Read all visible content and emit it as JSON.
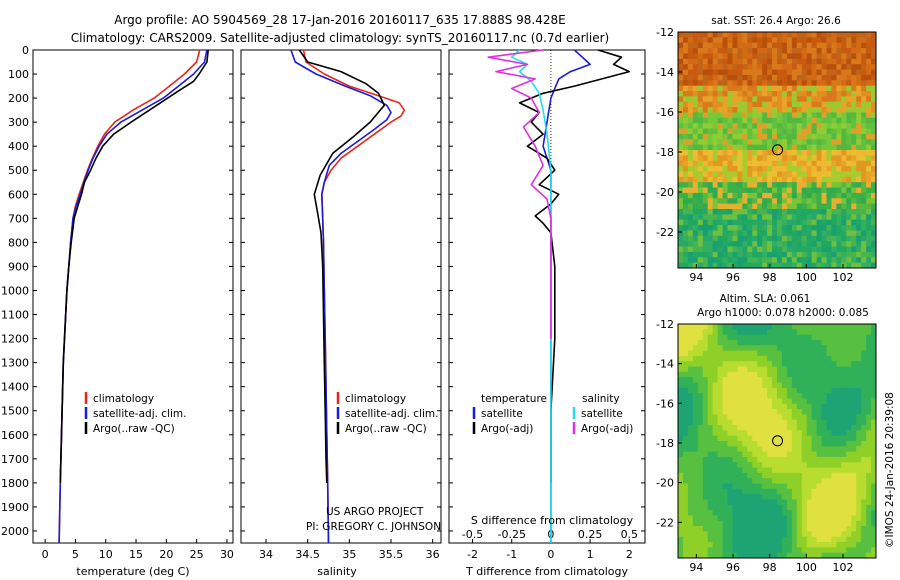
{
  "header": {
    "line1": "Argo profile: AO 5904569_28 17-Jan-2016 20160117_635 17.888S 98.428E",
    "line2": "Climatology: CARS2009. Satellite-adjusted climatology: synTS_20160117.nc (0.7d earlier)"
  },
  "credits": {
    "project": "US ARGO PROJECT",
    "pi": "PI: GREGORY C. JOHNSON",
    "stamp": "©IMOS 24-Jan-2016 20:39:08"
  },
  "colors": {
    "climatology": "#e8261e",
    "satellite": "#1c1cd8",
    "argo": "#000000",
    "sat_salinity": "#22e0e8",
    "argo_salinity": "#e030e0"
  },
  "chart_data": [
    {
      "id": "temperature",
      "type": "line",
      "xlabel": "temperature (deg C)",
      "xlim": [
        -2,
        31
      ],
      "xticks": [
        0,
        5,
        10,
        15,
        20,
        25,
        30
      ],
      "ylim": [
        2050,
        0
      ],
      "yticks": [
        0,
        100,
        200,
        300,
        400,
        500,
        600,
        700,
        800,
        900,
        1000,
        1100,
        1200,
        1300,
        1400,
        1500,
        1600,
        1700,
        1800,
        1900,
        2000
      ],
      "legend": [
        "climatology",
        "satellite-adj. clim.",
        "Argo(..raw -QC)"
      ],
      "series": [
        {
          "name": "climatology",
          "color_key": "climatology",
          "x": [
            25.5,
            25.0,
            23.0,
            20.5,
            18.0,
            14.5,
            11.5,
            9.8,
            8.7,
            7.8,
            7.0,
            6.3,
            5.6,
            5.0,
            4.6,
            4.2,
            3.9,
            3.6,
            3.4,
            3.2,
            3.0,
            2.9,
            2.7,
            2.5,
            2.3
          ],
          "y": [
            0,
            50,
            100,
            150,
            200,
            250,
            300,
            350,
            400,
            450,
            500,
            550,
            600,
            650,
            700,
            800,
            900,
            1000,
            1100,
            1200,
            1300,
            1400,
            1600,
            1800,
            2050
          ]
        },
        {
          "name": "satellite-adj. clim.",
          "color_key": "satellite",
          "x": [
            26.7,
            26.3,
            24.5,
            22.0,
            19.5,
            16.0,
            12.5,
            10.2,
            8.9,
            7.9,
            7.1,
            6.4,
            5.8,
            5.1,
            4.6,
            4.2,
            3.9,
            3.6,
            3.4,
            3.2,
            3.0,
            2.9,
            2.7,
            2.5,
            2.3
          ],
          "y": [
            0,
            50,
            100,
            150,
            200,
            250,
            300,
            350,
            400,
            450,
            500,
            550,
            600,
            650,
            700,
            800,
            900,
            1000,
            1100,
            1200,
            1300,
            1400,
            1600,
            1800,
            2050
          ]
        },
        {
          "name": "Argo(..raw -QC)",
          "color_key": "argo",
          "x": [
            26.9,
            26.7,
            25.4,
            24.5,
            22.0,
            19.0,
            14.2,
            11.3,
            9.5,
            8.4,
            7.5,
            6.5,
            6.0,
            5.4,
            4.8,
            4.3,
            3.9,
            3.6,
            3.4,
            3.2,
            3.0,
            2.9,
            2.7,
            2.5
          ],
          "y": [
            0,
            50,
            100,
            130,
            170,
            220,
            300,
            350,
            400,
            450,
            500,
            550,
            600,
            650,
            700,
            800,
            900,
            1000,
            1100,
            1200,
            1300,
            1400,
            1600,
            1800
          ]
        }
      ]
    },
    {
      "id": "salinity",
      "type": "line",
      "xlabel": "salinity",
      "xlim": [
        33.7,
        36.1
      ],
      "xticks": [
        34,
        34.5,
        35,
        35.5,
        36
      ],
      "ylim": [
        2050,
        0
      ],
      "legend": [
        "climatology",
        "satellite-adj. clim.",
        "Argo(..raw -QC)"
      ],
      "series": [
        {
          "name": "climatology",
          "color_key": "climatology",
          "x": [
            34.45,
            34.48,
            34.7,
            35.0,
            35.35,
            35.6,
            35.66,
            35.62,
            35.5,
            35.3,
            35.1,
            34.9,
            34.78,
            34.7,
            34.67,
            34.68,
            34.69,
            34.7,
            34.71,
            34.72,
            34.73,
            34.74,
            34.75
          ],
          "y": [
            0,
            50,
            100,
            150,
            190,
            220,
            250,
            275,
            300,
            350,
            400,
            450,
            500,
            550,
            600,
            700,
            800,
            1000,
            1200,
            1400,
            1600,
            1800,
            2050
          ]
        },
        {
          "name": "satellite-adj. clim.",
          "color_key": "satellite",
          "x": [
            34.3,
            34.35,
            34.6,
            34.95,
            35.25,
            35.45,
            35.5,
            35.45,
            35.3,
            35.1,
            34.9,
            34.76,
            34.7,
            34.67,
            34.68,
            34.69,
            34.7,
            34.71,
            34.72,
            34.73,
            34.74,
            34.75
          ],
          "y": [
            0,
            50,
            100,
            150,
            190,
            230,
            260,
            290,
            330,
            380,
            430,
            480,
            550,
            600,
            700,
            800,
            1000,
            1200,
            1400,
            1600,
            1800,
            2050
          ]
        },
        {
          "name": "Argo(..raw -QC)",
          "color_key": "argo",
          "x": [
            34.4,
            34.5,
            34.9,
            35.2,
            35.35,
            35.42,
            35.25,
            35.05,
            34.8,
            34.65,
            34.58,
            34.62,
            34.66,
            34.68,
            34.69,
            34.7,
            34.71,
            34.72,
            34.73
          ],
          "y": [
            0,
            50,
            90,
            140,
            180,
            230,
            300,
            360,
            430,
            520,
            600,
            680,
            760,
            900,
            1100,
            1300,
            1500,
            1700,
            1800
          ]
        }
      ]
    },
    {
      "id": "differences",
      "type": "line",
      "xlabel": "T difference from climatology",
      "xlabel_top": "S difference from climatology",
      "xlim": [
        -2.6,
        2.4
      ],
      "xticks": [
        -2,
        -1,
        0,
        1,
        2
      ],
      "xticks_top_labels": [
        "-0.5",
        "-0.25",
        "0",
        "0.25",
        "0.5"
      ],
      "xticks_top_pos": [
        -2,
        -1,
        0,
        1,
        2
      ],
      "ylim": [
        2050,
        0
      ],
      "legend_left_title": "temperature",
      "legend_right_title": "salinity",
      "legend": [
        "satellite",
        "Argo(-adj)",
        "satellite",
        "Argo(-adj)"
      ],
      "series": [
        {
          "name": "temperature satellite",
          "color_key": "satellite",
          "x": [
            0.6,
            0.8,
            1.0,
            0.5,
            0.2,
            0.1,
            0.0,
            -0.1,
            -0.2,
            0.0,
            0.0,
            0.0,
            0.0,
            0.0
          ],
          "y": [
            0,
            30,
            60,
            90,
            120,
            160,
            200,
            300,
            400,
            500,
            700,
            1000,
            1500,
            2050
          ]
        },
        {
          "name": "temperature Argo",
          "color_key": "argo",
          "x": [
            1.2,
            1.8,
            1.6,
            2.0,
            1.3,
            0.6,
            -0.2,
            -0.8,
            -0.3,
            -0.5,
            -0.2,
            -0.6,
            -0.1,
            0.1,
            -0.3,
            0.2,
            0.0,
            -0.4,
            -0.2,
            0.0,
            0.1,
            0.1,
            0.0,
            0.0
          ],
          "y": [
            0,
            30,
            60,
            90,
            120,
            150,
            180,
            220,
            260,
            300,
            350,
            400,
            450,
            500,
            560,
            600,
            640,
            690,
            720,
            760,
            900,
            1200,
            1500,
            1800
          ]
        },
        {
          "name": "salinity satellite",
          "color_key": "sat_salinity",
          "x": [
            -0.8,
            -1.0,
            -0.6,
            -0.8,
            -0.5,
            -0.3,
            -0.2,
            -0.1,
            0.0,
            0.0,
            0.0,
            0.0
          ],
          "y": [
            0,
            30,
            60,
            90,
            130,
            180,
            250,
            350,
            500,
            800,
            1300,
            2050
          ]
        },
        {
          "name": "salinity Argo",
          "color_key": "argo_salinity",
          "x": [
            -0.2,
            -1.6,
            -0.6,
            -1.4,
            -0.4,
            -1.0,
            -0.5,
            -0.3,
            -0.7,
            -0.4,
            -0.2,
            -0.5,
            -0.1,
            0.0,
            0.0,
            0.0
          ],
          "y": [
            0,
            30,
            60,
            90,
            120,
            160,
            200,
            260,
            320,
            400,
            480,
            560,
            620,
            700,
            900,
            1200
          ]
        }
      ]
    },
    {
      "id": "sst_map",
      "type": "heatmap",
      "title": "sat. SST: 26.4  Argo: 26.6",
      "xticks": [
        94,
        96,
        98,
        100,
        102
      ],
      "yticks": [
        -12,
        -14,
        -16,
        -18,
        -20,
        -22
      ],
      "xlim": [
        93,
        103.8
      ],
      "ylim": [
        -23.8,
        -12
      ],
      "marker": {
        "lon": 98.43,
        "lat": -17.89
      }
    },
    {
      "id": "sla_map",
      "type": "heatmap",
      "title1": "Altim. SLA: 0.061",
      "title2": "Argo h1000: 0.078 h2000: 0.085",
      "xticks": [
        94,
        96,
        98,
        100,
        102
      ],
      "yticks": [
        -12,
        -14,
        -16,
        -18,
        -20,
        -22
      ],
      "xlim": [
        93,
        103.8
      ],
      "ylim": [
        -23.8,
        -12
      ],
      "marker": {
        "lon": 98.43,
        "lat": -17.89
      }
    }
  ]
}
